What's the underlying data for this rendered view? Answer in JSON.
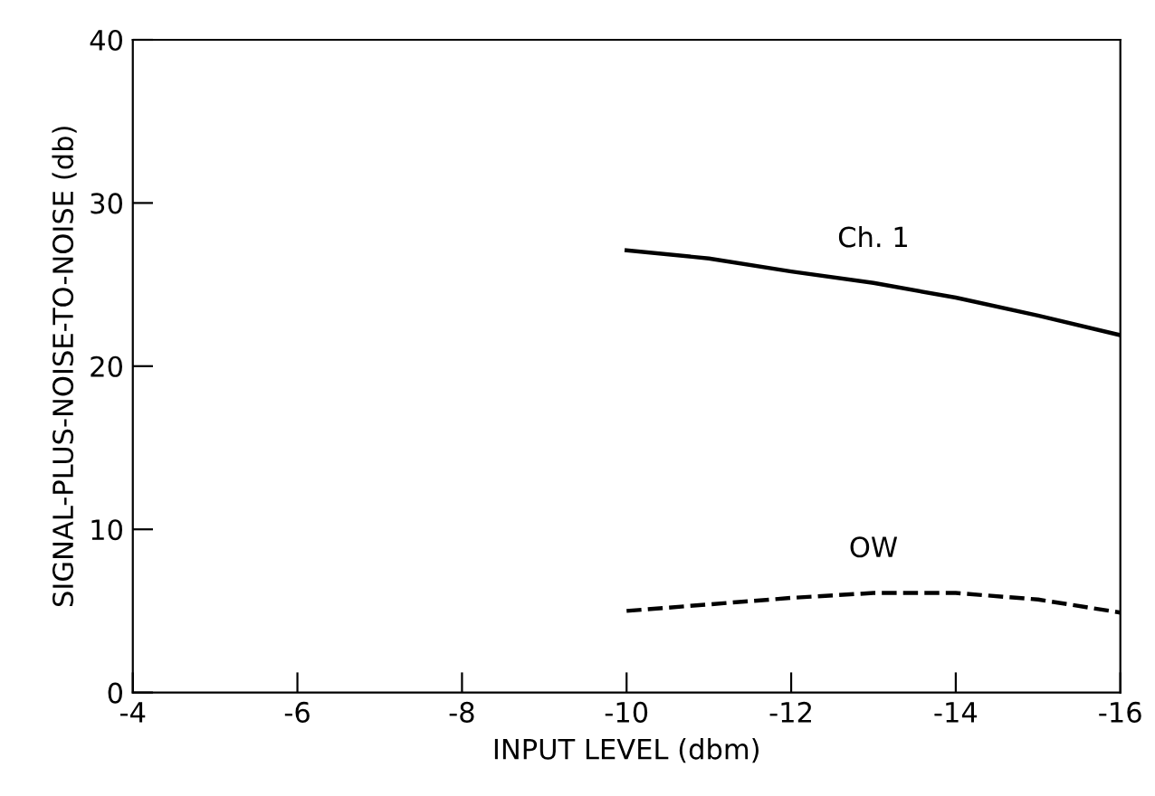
{
  "chart_data": {
    "type": "line",
    "xlabel": "INPUT LEVEL (dbm)",
    "ylabel": "SIGNAL-PLUS-NOISE-TO-NOISE (db)",
    "x": [
      -10,
      -11,
      -12,
      -13,
      -14,
      -15,
      -16
    ],
    "series": [
      {
        "name": "Ch. 1",
        "color": "#000000",
        "line_style": "solid",
        "values": [
          27.1,
          26.6,
          25.8,
          25.1,
          24.2,
          23.1,
          21.9
        ]
      },
      {
        "name": "OW",
        "color": "#000000",
        "line_style": "dashed",
        "values": [
          5.0,
          5.4,
          5.8,
          6.1,
          6.1,
          5.7,
          4.9
        ]
      }
    ],
    "xlim": [
      -4,
      -16
    ],
    "xticks": [
      -4,
      -6,
      -8,
      -10,
      -12,
      -14,
      -16
    ],
    "ylim": [
      0,
      40
    ],
    "yticks": [
      0,
      10,
      20,
      30,
      40
    ],
    "grid": false,
    "legend": false,
    "marker": "none"
  }
}
